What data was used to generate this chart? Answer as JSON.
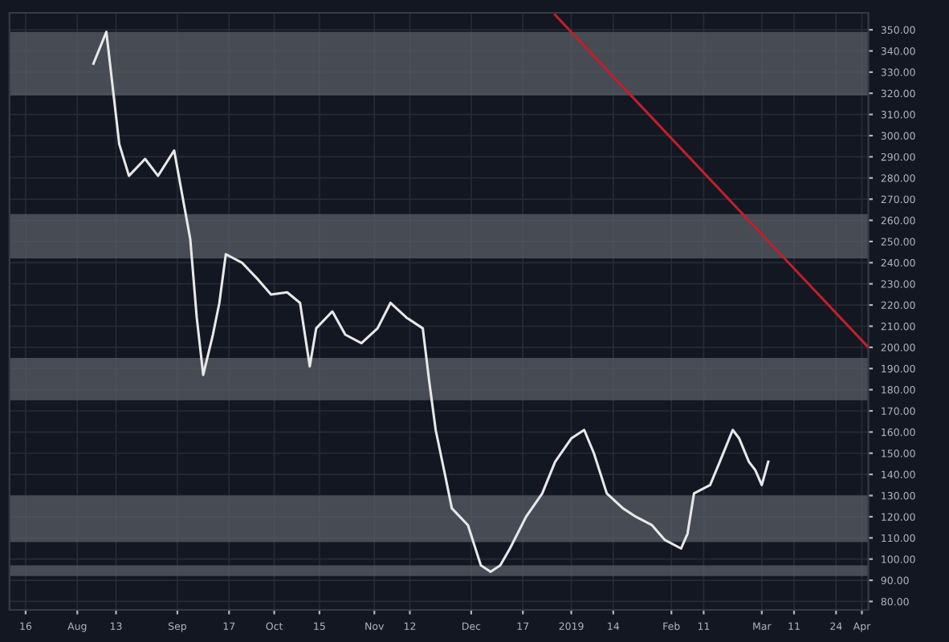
{
  "chart_data": {
    "type": "line",
    "xlim": [
      "2018-07-11",
      "2019-04-03"
    ],
    "xticks": [
      {
        "value": "2018-07-16",
        "label": "16"
      },
      {
        "value": "2018-08-01",
        "label": "Aug"
      },
      {
        "value": "2018-08-13",
        "label": "13"
      },
      {
        "value": "2018-09-01",
        "label": "Sep"
      },
      {
        "value": "2018-09-17",
        "label": "17"
      },
      {
        "value": "2018-10-01",
        "label": "Oct"
      },
      {
        "value": "2018-10-15",
        "label": "15"
      },
      {
        "value": "2018-11-01",
        "label": "Nov"
      },
      {
        "value": "2018-11-12",
        "label": "12"
      },
      {
        "value": "2018-12-01",
        "label": "Dec"
      },
      {
        "value": "2018-12-17",
        "label": "17"
      },
      {
        "value": "2019-01-01",
        "label": "2019"
      },
      {
        "value": "2019-01-14",
        "label": "14"
      },
      {
        "value": "2019-02-01",
        "label": "Feb"
      },
      {
        "value": "2019-02-11",
        "label": "11"
      },
      {
        "value": "2019-03-01",
        "label": "Mar"
      },
      {
        "value": "2019-03-11",
        "label": "11"
      },
      {
        "value": "2019-03-24",
        "label": "24"
      },
      {
        "value": "2019-04-01",
        "label": "Apr"
      }
    ],
    "ylim": [
      76,
      358
    ],
    "yticks": [
      {
        "value": 80,
        "label": "80.00"
      },
      {
        "value": 90,
        "label": "90.00"
      },
      {
        "value": 100,
        "label": "100.00"
      },
      {
        "value": 110,
        "label": "110.00"
      },
      {
        "value": 120,
        "label": "120.00"
      },
      {
        "value": 130,
        "label": "130.00"
      },
      {
        "value": 140,
        "label": "140.00"
      },
      {
        "value": 150,
        "label": "150.00"
      },
      {
        "value": 160,
        "label": "160.00"
      },
      {
        "value": 170,
        "label": "170.00"
      },
      {
        "value": 180,
        "label": "180.00"
      },
      {
        "value": 190,
        "label": "190.00"
      },
      {
        "value": 200,
        "label": "200.00"
      },
      {
        "value": 210,
        "label": "210.00"
      },
      {
        "value": 220,
        "label": "220.00"
      },
      {
        "value": 230,
        "label": "230.00"
      },
      {
        "value": 240,
        "label": "240.00"
      },
      {
        "value": 250,
        "label": "250.00"
      },
      {
        "value": 260,
        "label": "260.00"
      },
      {
        "value": 270,
        "label": "270.00"
      },
      {
        "value": 280,
        "label": "280.00"
      },
      {
        "value": 290,
        "label": "290.00"
      },
      {
        "value": 300,
        "label": "300.00"
      },
      {
        "value": 310,
        "label": "310.00"
      },
      {
        "value": 320,
        "label": "320.00"
      },
      {
        "value": 330,
        "label": "330.00"
      },
      {
        "value": 340,
        "label": "340.00"
      },
      {
        "value": 350,
        "label": "350.00"
      }
    ],
    "grid": true,
    "series": [
      {
        "color": "#e8e8e8",
        "x": [
          "2018-08-06",
          "2018-08-10",
          "2018-08-14",
          "2018-08-17",
          "2018-08-22",
          "2018-08-26",
          "2018-08-31",
          "2018-09-05",
          "2018-09-07",
          "2018-09-09",
          "2018-09-12",
          "2018-09-14",
          "2018-09-16",
          "2018-09-21",
          "2018-09-26",
          "2018-09-30",
          "2018-10-05",
          "2018-10-09",
          "2018-10-12",
          "2018-10-14",
          "2018-10-19",
          "2018-10-23",
          "2018-10-28",
          "2018-11-02",
          "2018-11-06",
          "2018-11-11",
          "2018-11-16",
          "2018-11-18",
          "2018-11-20",
          "2018-11-23",
          "2018-11-25",
          "2018-11-30",
          "2018-12-04",
          "2018-12-07",
          "2018-12-10",
          "2018-12-13",
          "2018-12-18",
          "2018-12-23",
          "2018-12-27",
          "2019-01-01",
          "2019-01-05",
          "2019-01-08",
          "2019-01-12",
          "2019-01-17",
          "2019-01-21",
          "2019-01-26",
          "2019-01-30",
          "2019-02-04",
          "2019-02-06",
          "2019-02-08",
          "2019-02-13",
          "2019-02-16",
          "2019-02-20",
          "2019-02-22",
          "2019-02-25",
          "2019-02-27",
          "2019-03-01",
          "2019-03-03"
        ],
        "values": [
          334,
          349,
          296,
          281,
          289,
          281,
          293,
          251,
          214,
          187,
          206,
          221,
          244,
          240,
          232,
          225,
          226,
          221,
          191,
          209,
          217,
          206,
          202,
          209,
          221,
          214,
          209,
          184,
          161,
          139,
          124,
          116,
          97,
          94,
          97,
          105,
          120,
          131,
          146,
          157,
          161,
          150,
          131,
          124,
          120,
          116,
          109,
          105,
          112,
          131,
          135,
          146,
          161,
          157,
          146,
          142,
          135,
          146
        ]
      },
      {
        "color": "#c0202a",
        "x": [
          "2018-12-27",
          "2019-04-03"
        ],
        "values": [
          357,
          200
        ]
      }
    ],
    "bands": [
      {
        "axis": "y",
        "from": 319,
        "to": 349,
        "color": "#5a5e66"
      },
      {
        "axis": "y",
        "from": 242,
        "to": 263,
        "color": "#5a5e66"
      },
      {
        "axis": "y",
        "from": 175,
        "to": 195,
        "color": "#5a5e66"
      },
      {
        "axis": "y",
        "from": 108,
        "to": 130,
        "color": "#5a5e66"
      },
      {
        "axis": "y",
        "from": 92,
        "to": 97,
        "color": "#5a5e66"
      }
    ]
  }
}
